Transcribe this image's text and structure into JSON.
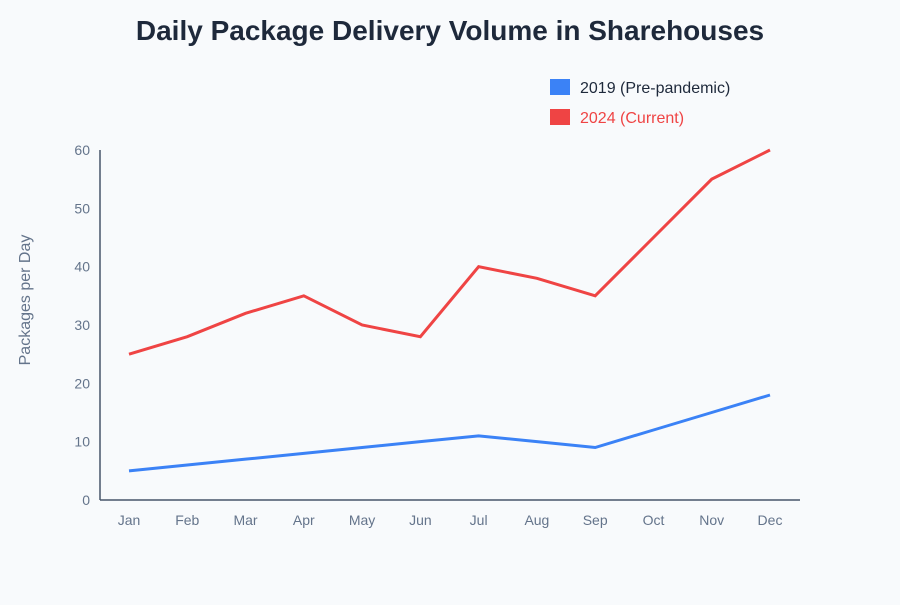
{
  "chart_data": {
    "type": "line",
    "title": "Daily Package Delivery Volume in Sharehouses",
    "xlabel": "",
    "ylabel": "Packages per Day",
    "ylim": [
      0,
      60
    ],
    "yticks": [
      0,
      10,
      20,
      30,
      40,
      50,
      60
    ],
    "grid": false,
    "legend_position": "top-right",
    "categories": [
      "Jan",
      "Feb",
      "Mar",
      "Apr",
      "May",
      "Jun",
      "Jul",
      "Aug",
      "Sep",
      "Oct",
      "Nov",
      "Dec"
    ],
    "series": [
      {
        "name": "2019 (Pre-pandemic)",
        "color": "#3b82f6",
        "values": [
          5,
          6,
          7,
          8,
          9,
          10,
          11,
          10,
          9,
          12,
          15,
          18
        ]
      },
      {
        "name": "2024 (Current)",
        "color": "#ef4444",
        "values": [
          25,
          28,
          32,
          35,
          30,
          28,
          40,
          38,
          35,
          45,
          55,
          60
        ]
      }
    ]
  }
}
